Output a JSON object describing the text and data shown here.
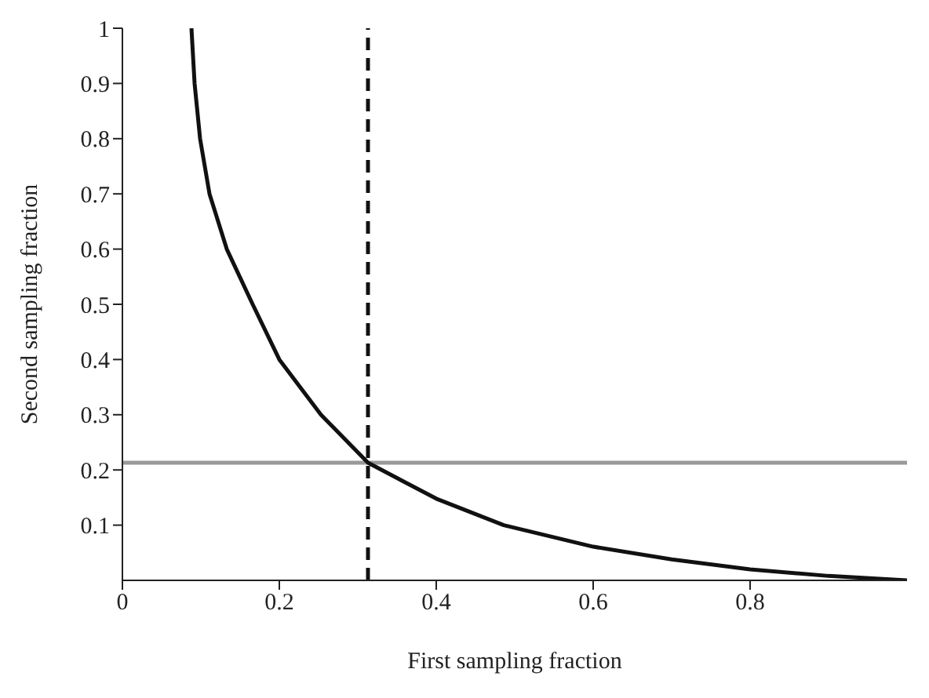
{
  "chart_data": {
    "type": "line",
    "xlabel": "First sampling fraction",
    "ylabel": "Second sampling fraction",
    "x": [
      0.088,
      0.092,
      0.099,
      0.111,
      0.133,
      0.166,
      0.2,
      0.253,
      0.313,
      0.4,
      0.486,
      0.6,
      0.7,
      0.8,
      0.9,
      1.0
    ],
    "series": [
      {
        "color": "#111111",
        "values": [
          1,
          0.9,
          0.8,
          0.7,
          0.6,
          0.5,
          0.4,
          0.3,
          0.213,
          0.148,
          0.1,
          0.061,
          0.038,
          0.02,
          0.008,
          0
        ]
      }
    ],
    "xlim": [
      0,
      1
    ],
    "ylim": [
      0,
      1
    ],
    "xticks": [
      0,
      0.2,
      0.4,
      0.6,
      0.8
    ],
    "yticks": [
      0.1,
      0.2,
      0.3,
      0.4,
      0.5,
      0.6,
      0.7,
      0.8,
      0.9,
      1
    ],
    "ref_lines": [
      {
        "axis": "x",
        "value": 0.313,
        "color": "#111111",
        "line_style": "dashed"
      },
      {
        "axis": "y",
        "value": 0.213,
        "color": "#999999",
        "line_style": "solid"
      }
    ],
    "grid": false,
    "legend": false,
    "marker": "none",
    "line_style": "solid"
  }
}
